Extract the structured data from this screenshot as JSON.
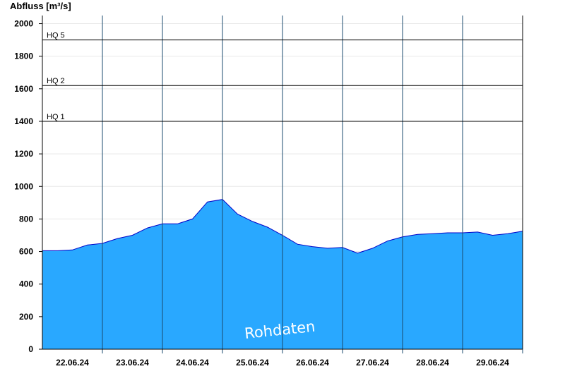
{
  "chart_data": {
    "type": "area",
    "ylabel": "Abfluss [m³/s]",
    "ylim": [
      0,
      2050
    ],
    "yticks": [
      0,
      200,
      400,
      600,
      800,
      1000,
      1200,
      1400,
      1600,
      1800,
      2000
    ],
    "xlim": [
      "21.06.24 12:00",
      "29.06.24 12:00"
    ],
    "xtick_labels": [
      "22.06.24",
      "23.06.24",
      "24.06.24",
      "25.06.24",
      "26.06.24",
      "27.06.24",
      "28.06.24",
      "29.06.24"
    ],
    "day_separators": [
      "22.06.24 12:00",
      "23.06.24 12:00",
      "24.06.24 12:00",
      "25.06.24 12:00",
      "26.06.24 12:00",
      "27.06.24 12:00",
      "28.06.24 12:00",
      "29.06.24 12:00"
    ],
    "thresholds": [
      {
        "label": "HQ 1",
        "value": 1400
      },
      {
        "label": "HQ 2",
        "value": 1620
      },
      {
        "label": "HQ 5",
        "value": 1900
      }
    ],
    "series": [
      {
        "x": [
          "21.06.24 12:00",
          "21.06.24 18:00",
          "22.06.24 00:00",
          "22.06.24 06:00",
          "22.06.24 12:00",
          "22.06.24 18:00",
          "23.06.24 00:00",
          "23.06.24 06:00",
          "23.06.24 12:00",
          "23.06.24 18:00",
          "24.06.24 00:00",
          "24.06.24 06:00",
          "24.06.24 12:00",
          "24.06.24 18:00",
          "25.06.24 00:00",
          "25.06.24 06:00",
          "25.06.24 12:00",
          "25.06.24 18:00",
          "26.06.24 00:00",
          "26.06.24 06:00",
          "26.06.24 12:00",
          "26.06.24 18:00",
          "27.06.24 00:00",
          "27.06.24 06:00",
          "27.06.24 12:00",
          "27.06.24 18:00",
          "28.06.24 00:00",
          "28.06.24 06:00",
          "28.06.24 12:00",
          "28.06.24 18:00",
          "29.06.24 00:00",
          "29.06.24 06:00",
          "29.06.24 12:00"
        ],
        "values": [
          605,
          605,
          610,
          640,
          650,
          680,
          700,
          745,
          770,
          770,
          800,
          905,
          920,
          830,
          785,
          750,
          700,
          645,
          630,
          620,
          625,
          590,
          620,
          665,
          690,
          705,
          710,
          715,
          715,
          720,
          700,
          710,
          725
        ]
      }
    ],
    "colors": {
      "fill": "#29a8ff",
      "line": "#0000c8",
      "threshold": "#000000",
      "grid": "#e8e8e8",
      "separator": "#1a4a6e"
    },
    "grid": true,
    "watermark": "Rohdaten"
  }
}
